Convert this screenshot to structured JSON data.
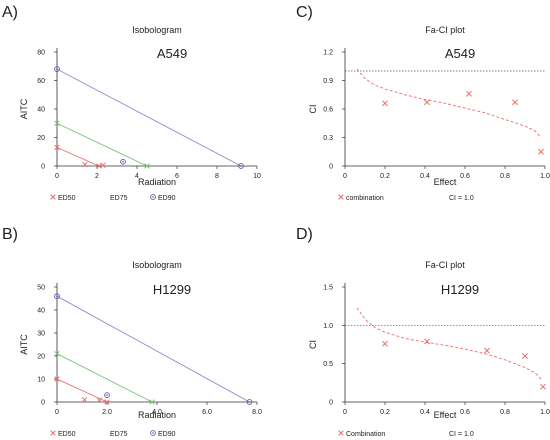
{
  "figure": {
    "panel_letters": [
      "A)",
      "B)",
      "C)",
      "D)"
    ]
  },
  "chart_data": [
    {
      "id": "A",
      "type": "scatter",
      "title": "Isobologram",
      "cell_line": "A549",
      "xlabel": "Radiation",
      "ylabel": "AITC",
      "xlim": [
        0,
        10
      ],
      "ylim": [
        0,
        80
      ],
      "xticks": [
        0,
        2,
        4,
        6,
        8,
        10
      ],
      "xtick_labels": [
        "0",
        "2",
        "4",
        "6",
        "8",
        "10"
      ],
      "yticks": [
        0,
        20,
        40,
        60,
        80
      ],
      "ytick_labels": [
        "0",
        "20",
        "40",
        "60",
        "80"
      ],
      "lines": [
        {
          "name": "ED50",
          "color": "#e87070",
          "points": [
            [
              0,
              13
            ],
            [
              2.1,
              0
            ]
          ]
        },
        {
          "name": "ED75",
          "color": "#7ac47a",
          "points": [
            [
              0,
              30
            ],
            [
              4.5,
              0
            ]
          ]
        },
        {
          "name": "ED90",
          "color": "#8c8ccc",
          "points": [
            [
              0,
              68
            ],
            [
              9.2,
              0
            ]
          ]
        }
      ],
      "series": [
        {
          "name": "ED50",
          "marker": "x",
          "color": "#e87070",
          "points": [
            [
              0,
              13
            ],
            [
              2.1,
              0
            ],
            [
              1.4,
              1
            ],
            [
              2.3,
              0.5
            ]
          ]
        },
        {
          "name": "ED75",
          "marker": "x",
          "color": "#7ac47a",
          "points": [
            [
              0,
              30
            ],
            [
              4.5,
              0
            ]
          ]
        },
        {
          "name": "ED90",
          "marker": "o",
          "color": "#5a5aa8",
          "points": [
            [
              0,
              68
            ],
            [
              9.2,
              0
            ],
            [
              3.3,
              3
            ]
          ]
        }
      ],
      "legend": [
        "ED50",
        "ED75",
        "ED90"
      ]
    },
    {
      "id": "B",
      "type": "scatter",
      "title": "Isobologram",
      "cell_line": "H1299",
      "xlabel": "Radiation",
      "ylabel": "AITC",
      "xlim": [
        0,
        8
      ],
      "ylim": [
        0,
        50
      ],
      "xticks": [
        0,
        2,
        4,
        6,
        8
      ],
      "xtick_labels": [
        "0",
        "2.0",
        "4.0",
        "6.0",
        "8.0"
      ],
      "yticks": [
        0,
        10,
        20,
        30,
        40,
        50
      ],
      "ytick_labels": [
        "0",
        "10",
        "20",
        "30",
        "40",
        "50"
      ],
      "lines": [
        {
          "name": "ED50",
          "color": "#e87070",
          "points": [
            [
              0,
              10
            ],
            [
              2.0,
              0
            ]
          ]
        },
        {
          "name": "ED75",
          "color": "#7ac47a",
          "points": [
            [
              0,
              21
            ],
            [
              3.8,
              0
            ]
          ]
        },
        {
          "name": "ED90",
          "color": "#8c8ccc",
          "points": [
            [
              0,
              46
            ],
            [
              7.7,
              0
            ]
          ]
        }
      ],
      "series": [
        {
          "name": "ED50",
          "marker": "x",
          "color": "#e87070",
          "points": [
            [
              0,
              10
            ],
            [
              2.0,
              0
            ],
            [
              1.1,
              1
            ],
            [
              1.7,
              0.8
            ]
          ]
        },
        {
          "name": "ED75",
          "marker": "x",
          "color": "#7ac47a",
          "points": [
            [
              0,
              21
            ],
            [
              3.8,
              0
            ]
          ]
        },
        {
          "name": "ED90",
          "marker": "o",
          "color": "#5a5aa8",
          "points": [
            [
              0,
              46
            ],
            [
              7.7,
              0
            ],
            [
              2.0,
              3
            ]
          ]
        }
      ],
      "legend": [
        "ED50",
        "ED75",
        "ED90"
      ]
    },
    {
      "id": "C",
      "type": "scatter",
      "title": "Fa-CI plot",
      "cell_line": "A549",
      "xlabel": "Effect",
      "ylabel": "CI",
      "xlim": [
        0,
        1
      ],
      "ylim": [
        0,
        1.2
      ],
      "xticks": [
        0,
        0.2,
        0.4,
        0.6,
        0.8,
        1.0
      ],
      "xtick_labels": [
        "0",
        "0.2",
        "0.4",
        "0.6",
        "0.8",
        "1.0"
      ],
      "yticks": [
        0,
        0.3,
        0.6,
        0.9,
        1.2
      ],
      "ytick_labels": [
        "0",
        "0.3",
        "0.6",
        "0.9",
        "1.2"
      ],
      "reference_line": 1.0,
      "points": [
        [
          0.2,
          0.66
        ],
        [
          0.41,
          0.67
        ],
        [
          0.62,
          0.76
        ],
        [
          0.85,
          0.67
        ],
        [
          0.98,
          0.15
        ]
      ],
      "fit_curve": [
        [
          0.06,
          1.02
        ],
        [
          0.1,
          0.92
        ],
        [
          0.15,
          0.85
        ],
        [
          0.2,
          0.81
        ],
        [
          0.3,
          0.75
        ],
        [
          0.4,
          0.7
        ],
        [
          0.5,
          0.66
        ],
        [
          0.6,
          0.61
        ],
        [
          0.7,
          0.56
        ],
        [
          0.8,
          0.49
        ],
        [
          0.9,
          0.42
        ],
        [
          0.95,
          0.37
        ],
        [
          0.98,
          0.3
        ]
      ],
      "legend": [
        "combination",
        "CI = 1.0"
      ]
    },
    {
      "id": "D",
      "type": "scatter",
      "title": "Fa-CI plot",
      "cell_line": "H1299",
      "xlabel": "Effect",
      "ylabel": "CI",
      "xlim": [
        0,
        1
      ],
      "ylim": [
        0,
        1.5
      ],
      "xticks": [
        0,
        0.2,
        0.4,
        0.6,
        0.8,
        1.0
      ],
      "xtick_labels": [
        "0",
        "0.2",
        "0.4",
        "0.6",
        "0.8",
        "1.0"
      ],
      "yticks": [
        0,
        0.5,
        1.0,
        1.5
      ],
      "ytick_labels": [
        "0",
        "0.5",
        "1.0",
        "1.5"
      ],
      "reference_line": 1.0,
      "points": [
        [
          0.2,
          0.76
        ],
        [
          0.41,
          0.79
        ],
        [
          0.71,
          0.67
        ],
        [
          0.9,
          0.6
        ],
        [
          0.99,
          0.2
        ]
      ],
      "fit_curve": [
        [
          0.06,
          1.23
        ],
        [
          0.1,
          1.08
        ],
        [
          0.15,
          0.97
        ],
        [
          0.2,
          0.91
        ],
        [
          0.3,
          0.83
        ],
        [
          0.4,
          0.78
        ],
        [
          0.5,
          0.74
        ],
        [
          0.6,
          0.69
        ],
        [
          0.7,
          0.63
        ],
        [
          0.8,
          0.55
        ],
        [
          0.9,
          0.45
        ],
        [
          0.95,
          0.38
        ],
        [
          0.98,
          0.3
        ]
      ],
      "legend": [
        "Combination",
        "CI = 1.0"
      ]
    }
  ]
}
